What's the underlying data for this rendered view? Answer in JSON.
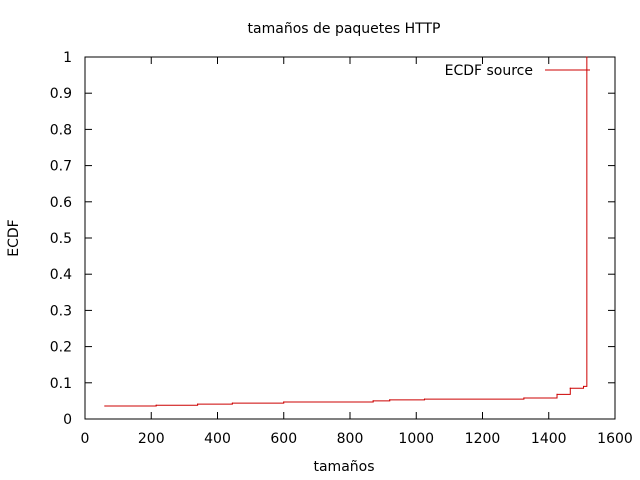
{
  "chart_data": {
    "type": "line",
    "title": "tamaños de paquetes HTTP",
    "xlabel": "tamaños",
    "ylabel": "ECDF",
    "xlim": [
      0,
      1600
    ],
    "ylim": [
      0,
      1
    ],
    "xticks": [
      0,
      200,
      400,
      600,
      800,
      1000,
      1200,
      1400,
      1600
    ],
    "yticks": [
      0,
      0.1,
      0.2,
      0.3,
      0.4,
      0.5,
      0.6,
      0.7,
      0.8,
      0.9,
      1
    ],
    "grid": false,
    "legend_position": "top-right",
    "series": [
      {
        "name": "ECDF source",
        "color": "#cc0000",
        "step": true,
        "x": [
          60,
          215,
          340,
          445,
          600,
          870,
          920,
          1025,
          1325,
          1425,
          1465,
          1505,
          1515
        ],
        "y": [
          0.036,
          0.038,
          0.041,
          0.044,
          0.047,
          0.05,
          0.053,
          0.055,
          0.058,
          0.068,
          0.085,
          0.09,
          1.0
        ]
      }
    ]
  }
}
